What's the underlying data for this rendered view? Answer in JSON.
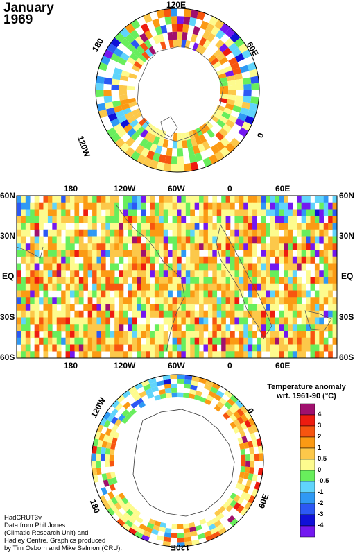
{
  "title": {
    "month": "January",
    "year": "1969"
  },
  "north_pole_map": {
    "labels": {
      "top": "120E",
      "left": "180",
      "right": "60E",
      "lower_left": "120W",
      "lower_right": "0"
    }
  },
  "equatorial_map": {
    "top_lon_labels": [
      "180",
      "120W",
      "60W",
      "0",
      "60E"
    ],
    "bottom_lon_labels": [
      "180",
      "120W",
      "60W",
      "0",
      "60E"
    ],
    "lat_labels": [
      "60N",
      "30N",
      "EQ",
      "30S",
      "60S"
    ]
  },
  "south_pole_map": {
    "labels": {
      "left": "120W",
      "right": "0",
      "lower_left": "180",
      "lower_right": "60E",
      "bottom": "120E"
    }
  },
  "legend": {
    "title_line1": "Temperature anomaly",
    "title_line2": "wrt. 1961-90  (°C)",
    "bins": [
      {
        "label": "4",
        "color": "#a0106e"
      },
      {
        "label": "3",
        "color": "#ee1c10"
      },
      {
        "label": "2",
        "color": "#f75510"
      },
      {
        "label": "1",
        "color": "#fb9a14"
      },
      {
        "label": "0.5",
        "color": "#fcc84a"
      },
      {
        "label": "0",
        "color": "#fdfb8e"
      },
      {
        "label": "-0.5",
        "color": "#68ee5c"
      },
      {
        "label": "-1",
        "color": "#60d4fb"
      },
      {
        "label": "-2",
        "color": "#2f99f4"
      },
      {
        "label": "-3",
        "color": "#2c58f4"
      },
      {
        "label": "-4",
        "color": "#1010d8"
      },
      {
        "label": "",
        "color": "#7318f0"
      }
    ]
  },
  "credit": {
    "line1": "HadCRUT3v",
    "line2": "Data from Phil Jones",
    "line3": "(Climatic Research Unit) and",
    "line4": "Hadley Centre.  Graphics produced",
    "line5": "by Tim Osborn and Mike Salmon (CRU)."
  }
}
